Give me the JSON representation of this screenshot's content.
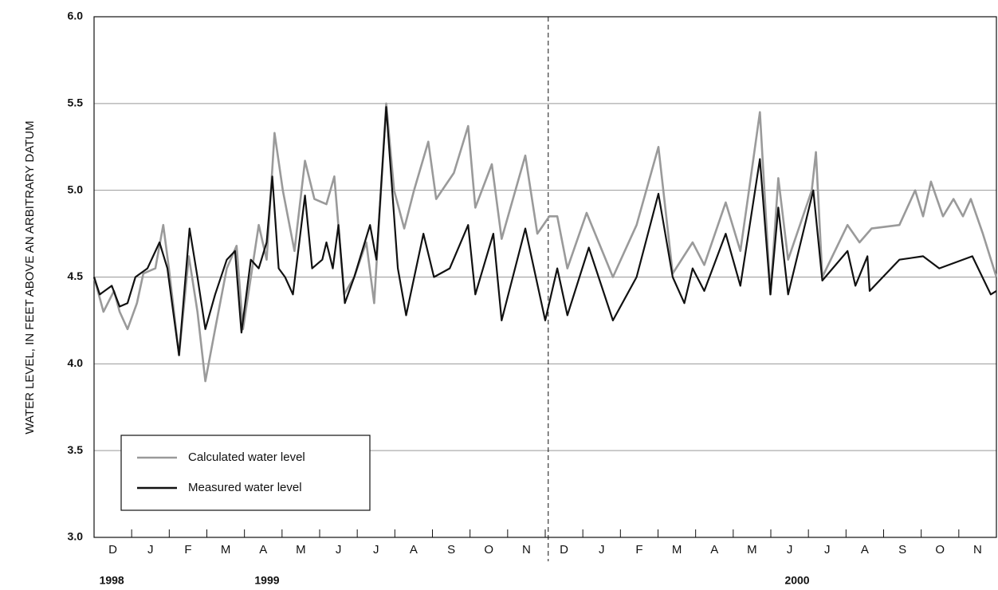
{
  "chart_data": {
    "type": "line",
    "y_label": "WATER LEVEL, IN FEET ABOVE AN ARBITRARY DATUM",
    "xlim": [
      0,
      24
    ],
    "ylim": [
      3,
      6
    ],
    "yticks": [
      {
        "value": 3,
        "label": "3.0"
      },
      {
        "value": 3.5,
        "label": "3.5"
      },
      {
        "value": 4,
        "label": "4.0"
      },
      {
        "value": 4.5,
        "label": "4.5"
      },
      {
        "value": 5,
        "label": "5.0"
      },
      {
        "value": 5.5,
        "label": "5.5"
      },
      {
        "value": 6,
        "label": "6.0"
      }
    ],
    "xticks": [
      {
        "value": 0.5,
        "label": "D"
      },
      {
        "value": 1.5,
        "label": "J"
      },
      {
        "value": 2.5,
        "label": "F"
      },
      {
        "value": 3.5,
        "label": "M"
      },
      {
        "value": 4.5,
        "label": "A"
      },
      {
        "value": 5.5,
        "label": "M"
      },
      {
        "value": 6.5,
        "label": "J"
      },
      {
        "value": 7.5,
        "label": "J"
      },
      {
        "value": 8.5,
        "label": "A"
      },
      {
        "value": 9.5,
        "label": "S"
      },
      {
        "value": 10.5,
        "label": "O"
      },
      {
        "value": 11.5,
        "label": "N"
      },
      {
        "value": 12.5,
        "label": "D"
      },
      {
        "value": 13.5,
        "label": "J"
      },
      {
        "value": 14.5,
        "label": "F"
      },
      {
        "value": 15.5,
        "label": "M"
      },
      {
        "value": 16.5,
        "label": "A"
      },
      {
        "value": 17.5,
        "label": "M"
      },
      {
        "value": 18.5,
        "label": "J"
      },
      {
        "value": 19.5,
        "label": "J"
      },
      {
        "value": 20.5,
        "label": "A"
      },
      {
        "value": 21.5,
        "label": "S"
      },
      {
        "value": 22.5,
        "label": "O"
      },
      {
        "value": 23.5,
        "label": "N"
      }
    ],
    "year_labels": [
      {
        "value": 0.47,
        "label": "1998"
      },
      {
        "value": 4.6,
        "label": "1999"
      },
      {
        "value": 18.7,
        "label": "2000"
      }
    ],
    "reference_line_x": 12.08,
    "grid": true,
    "legend": "lower left",
    "series": [
      {
        "name": "Calculated water level",
        "color": "#9a9a9a",
        "x": [
          0,
          0.25,
          0.53,
          0.68,
          0.89,
          1.14,
          1.31,
          1.63,
          1.84,
          1.99,
          2.26,
          2.52,
          2.75,
          2.96,
          3.22,
          3.53,
          3.79,
          3.96,
          4.17,
          4.38,
          4.59,
          4.8,
          5.02,
          5.33,
          5.61,
          5.86,
          6.18,
          6.39,
          6.65,
          6.92,
          7.24,
          7.45,
          7.77,
          7.98,
          8.25,
          8.51,
          8.89,
          9.1,
          9.57,
          9.95,
          10.14,
          10.58,
          10.84,
          11.47,
          11.79,
          12.11,
          12.32,
          12.59,
          13.1,
          13.8,
          14.43,
          15.01,
          15.39,
          15.92,
          16.23,
          16.8,
          17.19,
          17.4,
          17.71,
          17.99,
          18.2,
          18.46,
          19.09,
          19.2,
          19.37,
          20.04,
          20.36,
          20.68,
          21.42,
          21.84,
          22.05,
          22.26,
          22.58,
          22.86,
          23.11,
          23.32,
          23.64,
          24
        ],
        "values": [
          4.5,
          4.3,
          4.42,
          4.3,
          4.2,
          4.35,
          4.52,
          4.55,
          4.8,
          4.55,
          4.05,
          4.62,
          4.3,
          3.9,
          4.2,
          4.55,
          4.68,
          4.2,
          4.5,
          4.8,
          4.6,
          5.33,
          5.0,
          4.65,
          5.17,
          4.95,
          4.92,
          5.08,
          4.4,
          4.5,
          4.7,
          4.35,
          5.5,
          5.0,
          4.78,
          5.0,
          5.28,
          4.95,
          5.1,
          5.37,
          4.9,
          5.15,
          4.72,
          5.2,
          4.75,
          4.85,
          4.85,
          4.55,
          4.87,
          4.5,
          4.8,
          5.25,
          4.52,
          4.7,
          4.57,
          4.93,
          4.65,
          4.97,
          5.45,
          4.4,
          5.07,
          4.6,
          5.0,
          5.22,
          4.5,
          4.8,
          4.7,
          4.78,
          4.8,
          5.0,
          4.85,
          5.05,
          4.85,
          4.95,
          4.85,
          4.95,
          4.75,
          4.5
        ]
      },
      {
        "name": "Measured water level",
        "color": "#111111",
        "x": [
          0,
          0.15,
          0.47,
          0.68,
          0.89,
          1.1,
          1.42,
          1.74,
          1.95,
          2.26,
          2.54,
          2.75,
          2.96,
          3.22,
          3.53,
          3.75,
          3.92,
          4.17,
          4.38,
          4.59,
          4.74,
          4.91,
          5.08,
          5.29,
          5.61,
          5.8,
          6.07,
          6.18,
          6.35,
          6.5,
          6.67,
          6.92,
          7.2,
          7.34,
          7.51,
          7.77,
          8.08,
          8.3,
          8.76,
          9.04,
          9.46,
          9.95,
          10.14,
          10.62,
          10.84,
          11.47,
          12.0,
          12.32,
          12.59,
          13.16,
          13.8,
          14.43,
          15.01,
          15.39,
          15.7,
          15.92,
          16.23,
          16.8,
          17.19,
          17.44,
          17.71,
          17.99,
          18.2,
          18.46,
          19.13,
          19.37,
          20.04,
          20.25,
          20.57,
          20.63,
          21.42,
          22.05,
          22.48,
          23.36,
          23.85,
          24
        ],
        "values": [
          4.5,
          4.4,
          4.45,
          4.33,
          4.35,
          4.5,
          4.55,
          4.7,
          4.55,
          4.05,
          4.78,
          4.5,
          4.2,
          4.4,
          4.6,
          4.65,
          4.18,
          4.6,
          4.55,
          4.7,
          5.08,
          4.55,
          4.5,
          4.4,
          4.97,
          4.55,
          4.6,
          4.7,
          4.55,
          4.8,
          4.35,
          4.5,
          4.7,
          4.8,
          4.6,
          5.48,
          4.55,
          4.28,
          4.75,
          4.5,
          4.55,
          4.8,
          4.4,
          4.75,
          4.25,
          4.78,
          4.25,
          4.55,
          4.28,
          4.67,
          4.25,
          4.5,
          4.98,
          4.5,
          4.35,
          4.55,
          4.42,
          4.75,
          4.45,
          4.8,
          5.18,
          4.4,
          4.9,
          4.4,
          5.0,
          4.48,
          4.65,
          4.45,
          4.62,
          4.42,
          4.6,
          4.62,
          4.55,
          4.62,
          4.4,
          4.42
        ]
      }
    ]
  }
}
